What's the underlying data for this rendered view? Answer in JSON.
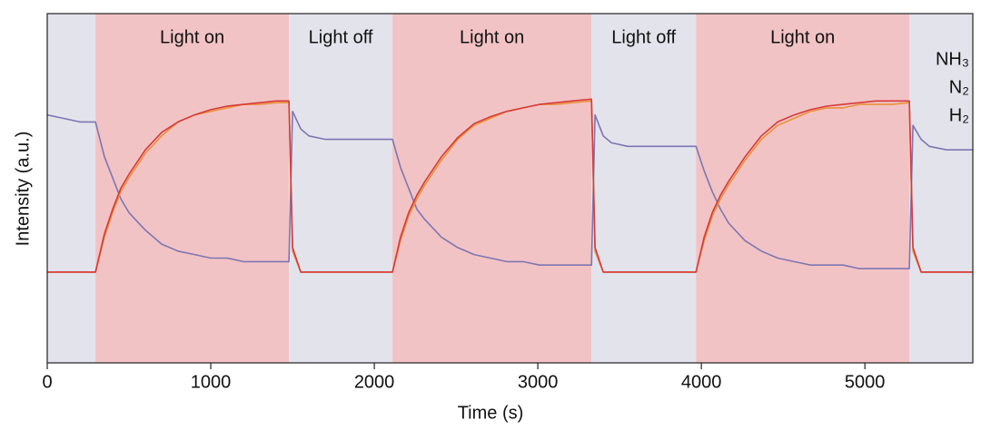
{
  "chart_data": {
    "type": "line",
    "xlabel": "Time (s)",
    "ylabel": "Intensity (a.u.)",
    "xlim": [
      0,
      5660
    ],
    "xticks": [
      0,
      1000,
      2000,
      3000,
      4000,
      5000
    ],
    "ylim": [
      0,
      1
    ],
    "legend": "upper right",
    "regions": [
      {
        "start": 0,
        "end": 295,
        "color": "#e3e3ec"
      },
      {
        "start": 295,
        "end": 1478,
        "label": "Light on",
        "color": "#f2c3c5"
      },
      {
        "start": 1478,
        "end": 2111,
        "label": "Light off",
        "color": "#e3e3ec"
      },
      {
        "start": 2111,
        "end": 3328,
        "label": "Light on",
        "color": "#f2c3c5"
      },
      {
        "start": 3328,
        "end": 3967,
        "label": "Light off",
        "color": "#e3e3ec"
      },
      {
        "start": 3967,
        "end": 5272,
        "label": "Light on",
        "color": "#f2c3c5"
      },
      {
        "start": 5272,
        "end": 5660,
        "color": "#e3e3ec"
      }
    ],
    "x": [
      0,
      100,
      200,
      295,
      350,
      400,
      450,
      500,
      600,
      700,
      800,
      900,
      1000,
      1100,
      1200,
      1300,
      1400,
      1478,
      1500,
      1550,
      1600,
      1700,
      1800,
      1900,
      2000,
      2111,
      2160,
      2210,
      2260,
      2310,
      2410,
      2510,
      2610,
      2710,
      2810,
      2910,
      3010,
      3110,
      3210,
      3328,
      3350,
      3400,
      3450,
      3550,
      3650,
      3750,
      3850,
      3967,
      4017,
      4067,
      4117,
      4167,
      4267,
      4367,
      4467,
      4567,
      4667,
      4767,
      4867,
      4967,
      5067,
      5167,
      5272,
      5294,
      5344,
      5394,
      5500,
      5600,
      5660
    ],
    "series": [
      {
        "name": "NH₃",
        "color": "#7d76b2",
        "values": [
          0.71,
          0.7,
          0.69,
          0.69,
          0.59,
          0.53,
          0.47,
          0.43,
          0.38,
          0.34,
          0.32,
          0.31,
          0.3,
          0.3,
          0.29,
          0.29,
          0.29,
          0.29,
          0.72,
          0.67,
          0.65,
          0.64,
          0.64,
          0.64,
          0.64,
          0.64,
          0.56,
          0.5,
          0.44,
          0.41,
          0.36,
          0.33,
          0.31,
          0.3,
          0.29,
          0.29,
          0.28,
          0.28,
          0.28,
          0.28,
          0.71,
          0.65,
          0.63,
          0.62,
          0.62,
          0.62,
          0.62,
          0.62,
          0.55,
          0.49,
          0.44,
          0.4,
          0.35,
          0.32,
          0.3,
          0.29,
          0.28,
          0.28,
          0.28,
          0.27,
          0.27,
          0.27,
          0.27,
          0.68,
          0.64,
          0.62,
          0.61,
          0.61,
          0.61
        ]
      },
      {
        "name": "N₂",
        "color": "#e8923a",
        "values": [
          0.26,
          0.26,
          0.26,
          0.26,
          0.36,
          0.43,
          0.49,
          0.53,
          0.6,
          0.65,
          0.69,
          0.71,
          0.72,
          0.73,
          0.74,
          0.74,
          0.745,
          0.745,
          0.32,
          0.26,
          0.26,
          0.26,
          0.26,
          0.26,
          0.26,
          0.26,
          0.35,
          0.42,
          0.47,
          0.51,
          0.58,
          0.64,
          0.68,
          0.7,
          0.72,
          0.73,
          0.74,
          0.74,
          0.745,
          0.75,
          0.32,
          0.26,
          0.26,
          0.26,
          0.26,
          0.26,
          0.26,
          0.26,
          0.35,
          0.42,
          0.47,
          0.51,
          0.58,
          0.64,
          0.68,
          0.7,
          0.72,
          0.73,
          0.73,
          0.74,
          0.74,
          0.74,
          0.745,
          0.32,
          0.26,
          0.26,
          0.26,
          0.26,
          0.26
        ]
      },
      {
        "name": "H₂",
        "color": "#d63a3a",
        "values": [
          0.26,
          0.26,
          0.26,
          0.26,
          0.37,
          0.44,
          0.5,
          0.54,
          0.61,
          0.66,
          0.69,
          0.71,
          0.725,
          0.735,
          0.74,
          0.745,
          0.75,
          0.75,
          0.33,
          0.26,
          0.26,
          0.26,
          0.26,
          0.26,
          0.26,
          0.26,
          0.36,
          0.43,
          0.48,
          0.52,
          0.59,
          0.645,
          0.685,
          0.705,
          0.72,
          0.73,
          0.74,
          0.745,
          0.75,
          0.755,
          0.33,
          0.26,
          0.26,
          0.26,
          0.26,
          0.26,
          0.26,
          0.26,
          0.36,
          0.43,
          0.48,
          0.52,
          0.59,
          0.65,
          0.69,
          0.71,
          0.725,
          0.735,
          0.74,
          0.745,
          0.75,
          0.75,
          0.75,
          0.33,
          0.26,
          0.26,
          0.26,
          0.26,
          0.26
        ]
      }
    ]
  }
}
